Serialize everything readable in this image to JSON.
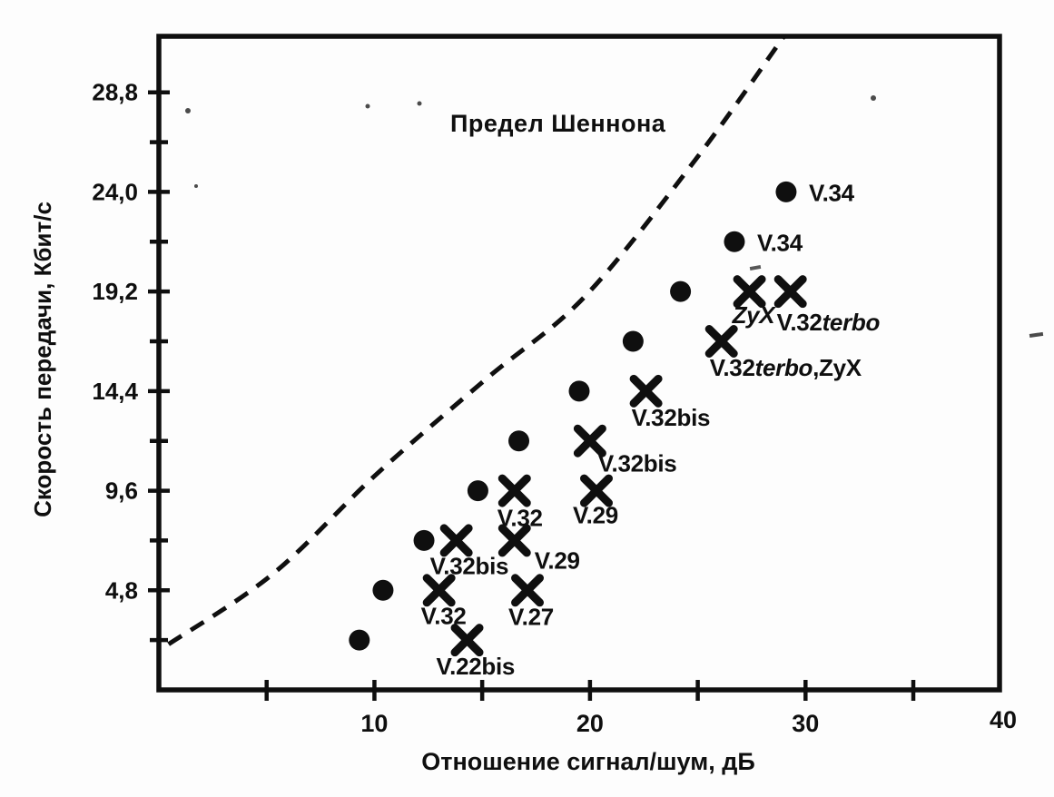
{
  "chart_data": {
    "type": "scatter",
    "title": "Предел Шеннона",
    "xlabel": "Отношение сигнал/шум, дБ",
    "ylabel": "Скорость передачи, Кбит/с",
    "xlim": [
      0,
      40
    ],
    "ylim": [
      0,
      31.5
    ],
    "grid": false,
    "x_major_ticks": [
      {
        "value": 10,
        "label": "10"
      },
      {
        "value": 20,
        "label": "20"
      },
      {
        "value": 30,
        "label": "30"
      },
      {
        "value": 40,
        "label": "40",
        "at_corner": true
      }
    ],
    "x_minor_ticks": [
      5,
      15,
      25,
      35
    ],
    "y_major_ticks": [
      {
        "value": 4.8,
        "label": "4,8"
      },
      {
        "value": 9.6,
        "label": "9,6"
      },
      {
        "value": 14.4,
        "label": "14,4"
      },
      {
        "value": 19.2,
        "label": "19,2"
      },
      {
        "value": 24.0,
        "label": "24,0"
      },
      {
        "value": 28.8,
        "label": "28,8"
      }
    ],
    "y_minor_ticks": [
      2.4,
      7.2,
      12.0,
      16.8,
      21.6,
      26.4
    ],
    "shannon_line": {
      "label": "Предел Шеннона",
      "style": "dashed",
      "points": [
        [
          0.45,
          2.2
        ],
        [
          5.3,
          5.6
        ],
        [
          10.1,
          10.4
        ],
        [
          15.2,
          15.0
        ],
        [
          19.8,
          19.0
        ],
        [
          25.0,
          25.7
        ],
        [
          29.0,
          31.5
        ]
      ]
    },
    "series": [
      {
        "name": "circle-markers",
        "marker": "circle",
        "points": [
          {
            "x": 9.3,
            "y": 2.4
          },
          {
            "x": 10.4,
            "y": 4.8
          },
          {
            "x": 12.3,
            "y": 7.2
          },
          {
            "x": 14.8,
            "y": 9.6
          },
          {
            "x": 16.7,
            "y": 12.0
          },
          {
            "x": 19.5,
            "y": 14.4
          },
          {
            "x": 22.0,
            "y": 16.8
          },
          {
            "x": 24.2,
            "y": 19.2
          },
          {
            "x": 26.7,
            "y": 21.6,
            "label": "V.34",
            "label_runs": [
              {
                "text": "V.34"
              }
            ],
            "label_dx": 25,
            "label_dy": 10
          },
          {
            "x": 29.1,
            "y": 24.0,
            "label": "V.34",
            "label_runs": [
              {
                "text": "V.34"
              }
            ],
            "label_dx": 25,
            "label_dy": 10
          }
        ]
      },
      {
        "name": "x-markers-modem-standards",
        "marker": "x",
        "points": [
          {
            "x": 14.3,
            "y": 2.4,
            "label": "V.22bis",
            "label_runs": [
              {
                "text": "V.22bis"
              }
            ],
            "label_dx": -34,
            "label_dy": 38
          },
          {
            "x": 13.0,
            "y": 4.8,
            "label": "V.32",
            "label_runs": [
              {
                "text": "V.32"
              }
            ],
            "label_dx": -20,
            "label_dy": 37
          },
          {
            "x": 17.1,
            "y": 4.8,
            "label": "V.27",
            "label_runs": [
              {
                "text": "V.27"
              }
            ],
            "label_dx": -21,
            "label_dy": 38
          },
          {
            "x": 13.8,
            "y": 7.2,
            "label": "V.32bis",
            "label_runs": [
              {
                "text": "V.32bis"
              }
            ],
            "label_dx": -29,
            "label_dy": 37
          },
          {
            "x": 16.5,
            "y": 7.2,
            "label": "V.29",
            "label_runs": [
              {
                "text": "V.29"
              }
            ],
            "label_dx": 22,
            "label_dy": 31
          },
          {
            "x": 16.5,
            "y": 9.6,
            "label": "V.32",
            "label_runs": [
              {
                "text": "V.32"
              }
            ],
            "label_dx": -19,
            "label_dy": 39
          },
          {
            "x": 20.3,
            "y": 9.6,
            "label": "V.29",
            "label_runs": [
              {
                "text": "V.29"
              }
            ],
            "label_dx": -26,
            "label_dy": 36
          },
          {
            "x": 20.0,
            "y": 12.0,
            "label": "V.32bis",
            "label_runs": [
              {
                "text": "V.32bis"
              }
            ],
            "label_dx": 9,
            "label_dy": 34
          },
          {
            "x": 22.6,
            "y": 14.4,
            "label": "V.32bis",
            "label_runs": [
              {
                "text": "V.32bis"
              }
            ],
            "label_dx": -16,
            "label_dy": 38
          },
          {
            "x": 26.1,
            "y": 16.8,
            "label": "V.32terbo,ZyX",
            "label_runs": [
              {
                "text": "V.32"
              },
              {
                "text": "terbo",
                "italic": true
              },
              {
                "text": ",ZyX"
              }
            ],
            "label_dx": -13,
            "label_dy": 38
          },
          {
            "x": 27.4,
            "y": 19.2,
            "label": "ZyX",
            "label_runs": [
              {
                "text": "ZyX",
                "italic": true
              }
            ],
            "label_dx": -19,
            "label_dy": 35
          },
          {
            "x": 29.3,
            "y": 19.2,
            "label": "V.32terbo",
            "label_runs": [
              {
                "text": "V.32"
              },
              {
                "text": "terbo",
                "italic": true
              }
            ],
            "label_dx": -15,
            "label_dy": 43
          }
        ]
      }
    ]
  }
}
